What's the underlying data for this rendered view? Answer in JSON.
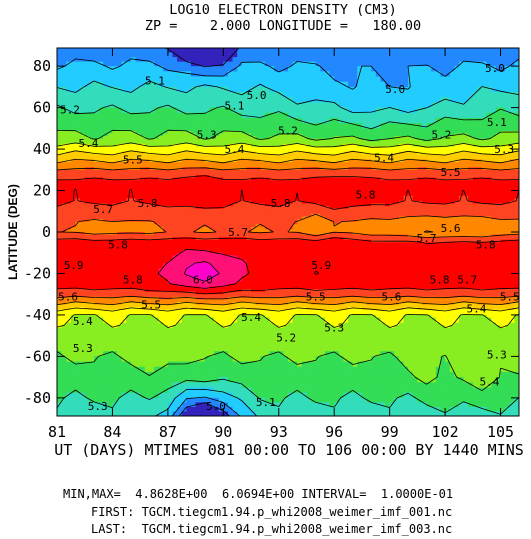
{
  "chart_data": {
    "type": "heatmap",
    "title": "LOG10 ELECTRON DENSITY (CM3)",
    "subtitle": "ZP =    2.000 LONGITUDE =   180.00",
    "xlabel": "UT (DAYS) MTIMES 081 00:00 TO 106 00:00 BY 1440 MINS",
    "ylabel": "LATITUDE (DEG)",
    "x_ticks": [
      81,
      84,
      87,
      90,
      93,
      96,
      99,
      102,
      105
    ],
    "y_ticks": [
      80,
      60,
      40,
      20,
      0,
      -20,
      -40,
      -60,
      -80
    ],
    "xlim": [
      81,
      106
    ],
    "ylim": [
      -88.75,
      88.75
    ],
    "x": [
      81,
      82,
      83,
      84,
      85,
      86,
      87,
      88,
      89,
      90,
      91,
      92,
      93,
      94,
      95,
      96,
      97,
      98,
      99,
      100,
      101,
      102,
      103,
      104,
      105,
      106
    ],
    "y": [
      88.75,
      80,
      70,
      60,
      50,
      45,
      40,
      35,
      30,
      25,
      20,
      15,
      10,
      5,
      0,
      -5,
      -10,
      -15,
      -20,
      -25,
      -30,
      -35,
      -40,
      -45,
      -50,
      -60,
      -70,
      -80,
      -88.75
    ],
    "contour_interval": 0.1,
    "levels": [
      4.9,
      5.0,
      5.1,
      5.2,
      5.3,
      5.4,
      5.5,
      5.6,
      5.7,
      5.8,
      5.9,
      6.0
    ],
    "colors": [
      "#3322bb",
      "#2288ff",
      "#22ccff",
      "#33ddbb",
      "#33dd55",
      "#88ee22",
      "#ffff00",
      "#ffcc00",
      "#ff8800",
      "#ff4422",
      "#ff0000",
      "#ff1177",
      "#ff00cc"
    ],
    "contour_labels": [
      {
        "text": "5.0",
        "x": 104.7,
        "y": 79
      },
      {
        "text": "5.0",
        "x": 99.3,
        "y": 69
      },
      {
        "text": "5.0",
        "x": 91.8,
        "y": 66
      },
      {
        "text": "5.1",
        "x": 86.3,
        "y": 73
      },
      {
        "text": "5.1",
        "x": 90.6,
        "y": 61
      },
      {
        "text": "5.1",
        "x": 104.8,
        "y": 53
      },
      {
        "text": "5.2",
        "x": 81.7,
        "y": 59
      },
      {
        "text": "5.2",
        "x": 93.5,
        "y": 49
      },
      {
        "text": "5.2",
        "x": 101.8,
        "y": 47
      },
      {
        "text": "5.3",
        "x": 89.1,
        "y": 47
      },
      {
        "text": "5.3",
        "x": 105.2,
        "y": 40
      },
      {
        "text": "5.4",
        "x": 82.7,
        "y": 43
      },
      {
        "text": "5.4",
        "x": 90.6,
        "y": 40
      },
      {
        "text": "5.4",
        "x": 98.7,
        "y": 36
      },
      {
        "text": "5.5",
        "x": 85.1,
        "y": 35
      },
      {
        "text": "5.5",
        "x": 102.3,
        "y": 29
      },
      {
        "text": "5.7",
        "x": 83.5,
        "y": 11
      },
      {
        "text": "5.8",
        "x": 85.9,
        "y": 14
      },
      {
        "text": "5.8",
        "x": 93.1,
        "y": 14
      },
      {
        "text": "5.8",
        "x": 97.7,
        "y": 18
      },
      {
        "text": "5.7",
        "x": 90.8,
        "y": 0
      },
      {
        "text": "5.6",
        "x": 102.3,
        "y": 2
      },
      {
        "text": "5.7",
        "x": 101.0,
        "y": -3
      },
      {
        "text": "5.8",
        "x": 84.3,
        "y": -6
      },
      {
        "text": "5.8",
        "x": 104.2,
        "y": -6
      },
      {
        "text": "5.9",
        "x": 81.9,
        "y": -16
      },
      {
        "text": "5.9",
        "x": 95.3,
        "y": -16
      },
      {
        "text": "5.8",
        "x": 85.1,
        "y": -23
      },
      {
        "text": "6.0",
        "x": 88.9,
        "y": -23
      },
      {
        "text": "5.8",
        "x": 101.7,
        "y": -23
      },
      {
        "text": "5.7",
        "x": 103.2,
        "y": -23
      },
      {
        "text": "5.6",
        "x": 81.6,
        "y": -31
      },
      {
        "text": "5.5",
        "x": 86.1,
        "y": -35
      },
      {
        "text": "5.5",
        "x": 95.0,
        "y": -31
      },
      {
        "text": "5.6",
        "x": 99.1,
        "y": -31
      },
      {
        "text": "5.5",
        "x": 105.5,
        "y": -31
      },
      {
        "text": "5.4",
        "x": 82.4,
        "y": -43
      },
      {
        "text": "5.4",
        "x": 91.5,
        "y": -41
      },
      {
        "text": "5.4",
        "x": 103.7,
        "y": -37
      },
      {
        "text": "5.3",
        "x": 96.0,
        "y": -46
      },
      {
        "text": "5.2",
        "x": 93.4,
        "y": -51
      },
      {
        "text": "5.3",
        "x": 82.4,
        "y": -56
      },
      {
        "text": "5.3",
        "x": 104.8,
        "y": -59
      },
      {
        "text": "5.4",
        "x": 104.4,
        "y": -72
      },
      {
        "text": "5.3",
        "x": 83.2,
        "y": -84
      },
      {
        "text": "5.0",
        "x": 89.6,
        "y": -84
      },
      {
        "text": "5.1",
        "x": 92.3,
        "y": -82
      }
    ],
    "minmax_line": "MIN,MAX=  4.8628E+00  6.0694E+00 INTERVAL=  1.0000E-01",
    "first_file": "FIRST: TGCM.tiegcm1.94.p_whi2008_weimer_imf_001.nc",
    "last_file": "LAST:  TGCM.tiegcm1.94.p_whi2008_weimer_imf_003.nc"
  }
}
